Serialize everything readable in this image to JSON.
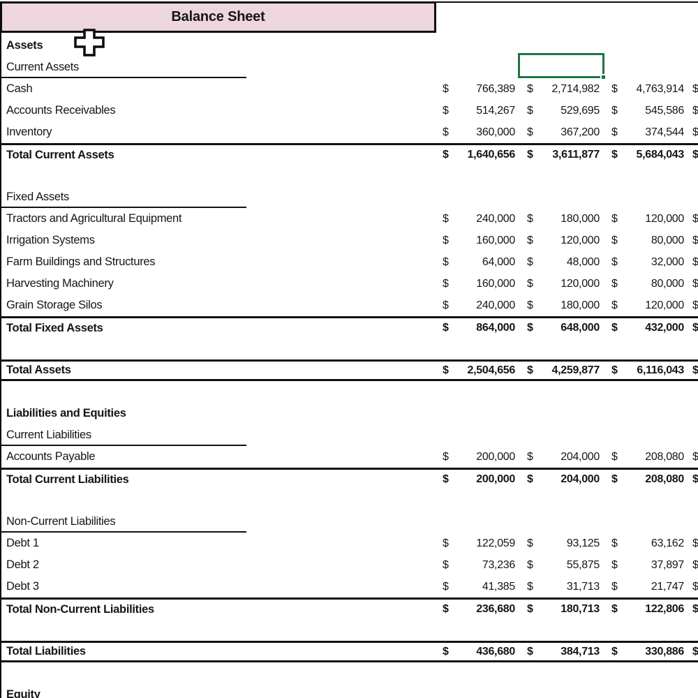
{
  "title": "Balance Sheet",
  "colors": {
    "title_bg": "#eed6de",
    "selection_green": "#217346",
    "border": "#0c0c0c",
    "text": "#151515"
  },
  "selection": {
    "active_cell_row_label": "Current Assets",
    "active_cell_column_index": 2
  },
  "currency_symbol": "$",
  "partial_fourth_column_symbol": "$",
  "rows": [
    {
      "style": "section",
      "label": "Assets",
      "values": []
    },
    {
      "style": "subheader",
      "label": "Current Assets",
      "values": []
    },
    {
      "style": "item",
      "label": "Cash",
      "values": [
        "766,389",
        "2,714,982",
        "4,763,914"
      ]
    },
    {
      "style": "item",
      "label": "Accounts Receivables",
      "values": [
        "514,267",
        "529,695",
        "545,586"
      ]
    },
    {
      "style": "item",
      "label": "Inventory",
      "values": [
        "360,000",
        "367,200",
        "374,544"
      ]
    },
    {
      "style": "total",
      "label": "Total Current Assets",
      "values": [
        "1,640,656",
        "3,611,877",
        "5,684,043"
      ]
    },
    {
      "style": "empty",
      "label": "",
      "values": []
    },
    {
      "style": "subheader",
      "label": "Fixed Assets",
      "values": []
    },
    {
      "style": "item",
      "label": "Tractors and Agricultural Equipment",
      "values": [
        "240,000",
        "180,000",
        "120,000"
      ]
    },
    {
      "style": "item",
      "label": "Irrigation Systems",
      "values": [
        "160,000",
        "120,000",
        "80,000"
      ]
    },
    {
      "style": "item",
      "label": "Farm Buildings and Structures",
      "values": [
        "64,000",
        "48,000",
        "32,000"
      ]
    },
    {
      "style": "item",
      "label": "Harvesting Machinery",
      "values": [
        "160,000",
        "120,000",
        "80,000"
      ]
    },
    {
      "style": "item",
      "label": "Grain Storage Silos",
      "values": [
        "240,000",
        "180,000",
        "120,000"
      ]
    },
    {
      "style": "total",
      "label": "Total Fixed Assets",
      "values": [
        "864,000",
        "648,000",
        "432,000"
      ]
    },
    {
      "style": "empty",
      "label": "",
      "values": []
    },
    {
      "style": "grandtotal",
      "label": "Total Assets",
      "values": [
        "2,504,656",
        "4,259,877",
        "6,116,043"
      ]
    },
    {
      "style": "empty",
      "label": "",
      "values": []
    },
    {
      "style": "section",
      "label": "Liabilities and Equities",
      "values": []
    },
    {
      "style": "subheader",
      "label": "Current Liabilities",
      "values": []
    },
    {
      "style": "item",
      "label": "Accounts Payable",
      "values": [
        "200,000",
        "204,000",
        "208,080"
      ]
    },
    {
      "style": "total",
      "label": "Total Current Liabilities",
      "values": [
        "200,000",
        "204,000",
        "208,080"
      ]
    },
    {
      "style": "empty",
      "label": "",
      "values": []
    },
    {
      "style": "subheader",
      "label": "Non-Current Liabilities",
      "values": []
    },
    {
      "style": "item",
      "label": "Debt 1",
      "values": [
        "122,059",
        "93,125",
        "63,162"
      ]
    },
    {
      "style": "item",
      "label": "Debt 2",
      "values": [
        "73,236",
        "55,875",
        "37,897"
      ]
    },
    {
      "style": "item",
      "label": "Debt 3",
      "values": [
        "41,385",
        "31,713",
        "21,747"
      ]
    },
    {
      "style": "total",
      "label": "Total Non-Current Liabilities",
      "values": [
        "236,680",
        "180,713",
        "122,806"
      ]
    },
    {
      "style": "empty",
      "label": "",
      "values": []
    },
    {
      "style": "grandtotal",
      "label": "Total Liabilities",
      "values": [
        "436,680",
        "384,713",
        "330,886"
      ]
    },
    {
      "style": "empty",
      "label": "",
      "values": []
    },
    {
      "style": "section",
      "label": "Equity",
      "values": []
    }
  ]
}
